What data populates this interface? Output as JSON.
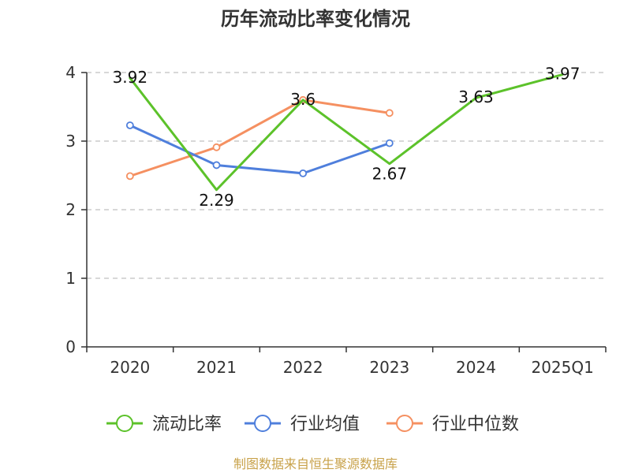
{
  "chart_data": {
    "type": "line",
    "title": "历年流动比率变化情况",
    "categories": [
      "2020",
      "2021",
      "2022",
      "2023",
      "2024",
      "2025Q1"
    ],
    "ylim": [
      0,
      4
    ],
    "yticks": [
      "0",
      "1",
      "2",
      "3",
      "4"
    ],
    "grid": true,
    "legend_position": "bottom",
    "series": [
      {
        "name": "流动比率",
        "color": "#5cc22a",
        "values": [
          3.92,
          2.29,
          3.6,
          2.67,
          3.63,
          3.97
        ],
        "labels": [
          "3.92",
          "2.29",
          "3.6",
          "2.67",
          "3.63",
          "3.97"
        ],
        "show_markers": false
      },
      {
        "name": "行业均值",
        "color": "#4f7fdc",
        "values": [
          3.23,
          2.65,
          2.53,
          2.97,
          null,
          null
        ],
        "show_markers": true
      },
      {
        "name": "行业中位数",
        "color": "#f59061",
        "values": [
          2.49,
          2.91,
          3.6,
          3.41,
          null,
          null
        ],
        "show_markers": true
      }
    ],
    "source": "制图数据来自恒生聚源数据库"
  }
}
